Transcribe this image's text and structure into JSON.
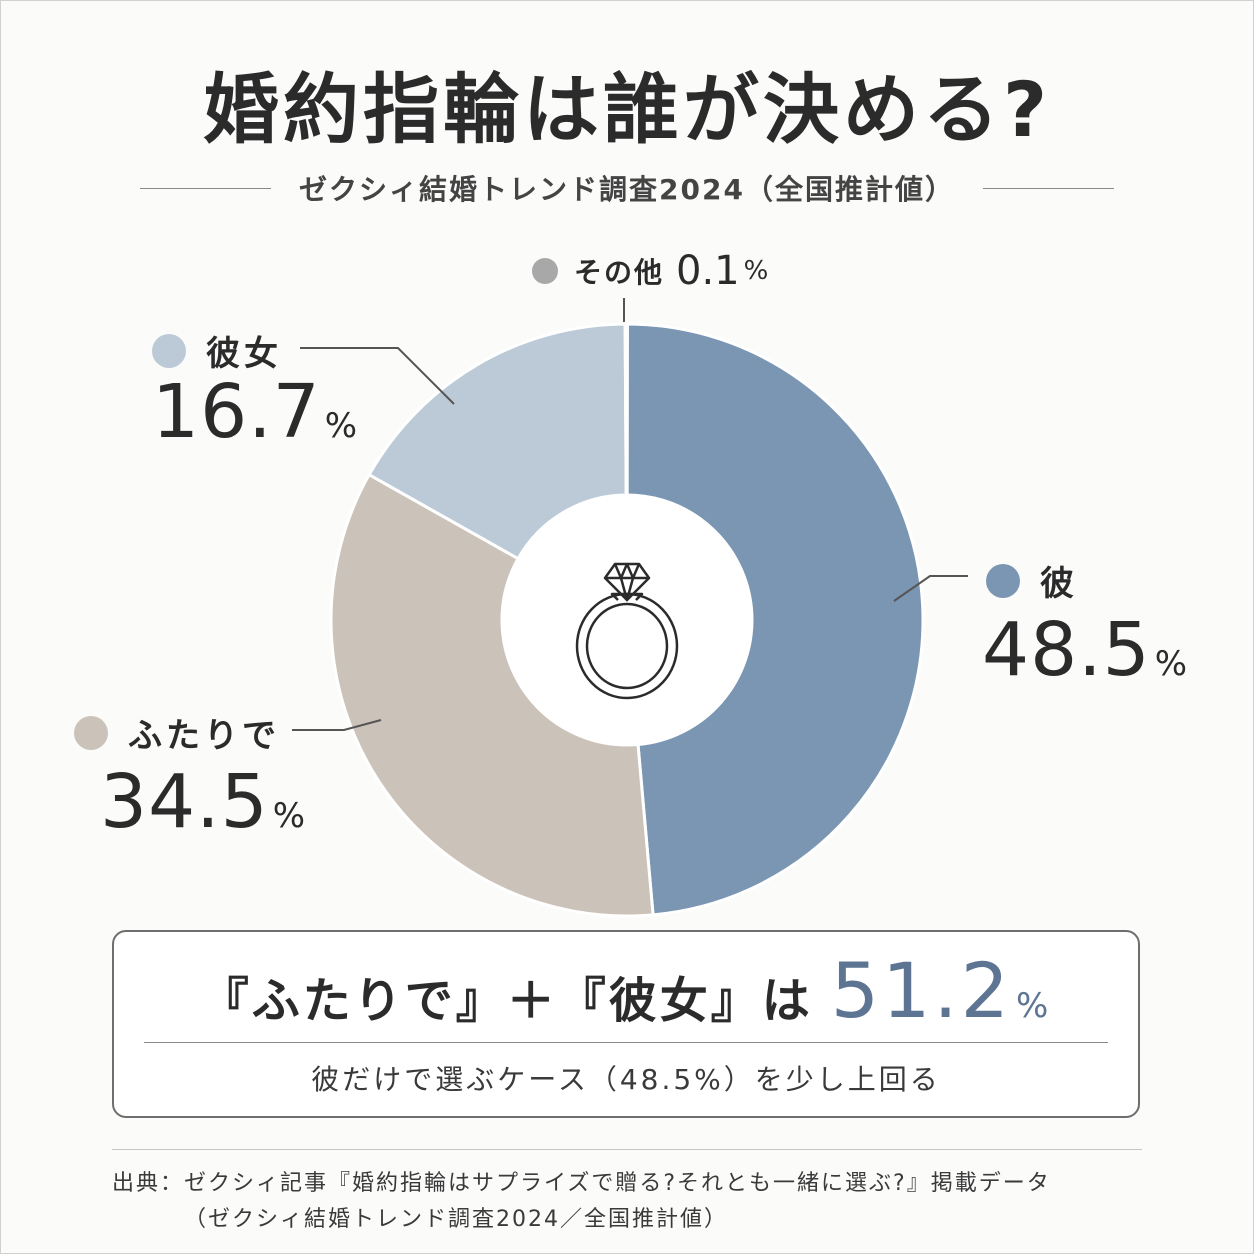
{
  "title": "婚約指輪は誰が決める?",
  "subtitle": "ゼクシィ結婚トレンド調査2024（全国推計値）",
  "chart_data": {
    "type": "pie",
    "donut": true,
    "unit": "%",
    "slices": [
      {
        "label": "彼",
        "value": 48.5,
        "value_text": "48.5",
        "color": "#7b96b2"
      },
      {
        "label": "ふたりで",
        "value": 34.5,
        "value_text": "34.5",
        "color": "#cbc3b9"
      },
      {
        "label": "彼女",
        "value": 16.7,
        "value_text": "16.7",
        "color": "#bccad8"
      },
      {
        "label": "その他",
        "value": 0.1,
        "value_text": "0.1",
        "color": "#7a7a7a",
        "dot_color": "#a8a8a8"
      }
    ],
    "center_icon": "ring-icon"
  },
  "percent_sign": "%",
  "summary": {
    "line1_prefix": "『ふたりで』＋『彼女』は",
    "highlight": "51.2",
    "highlight_unit": "%",
    "line2": "彼だけで選ぶケース（48.5%）を少し上回る"
  },
  "source": {
    "line1": "出典：ゼクシィ記事『婚約指輪はサプライズで贈る?それとも一緒に選ぶ?』掲載データ",
    "line2": "（ゼクシィ結婚トレンド調査2024／全国推計値）"
  }
}
